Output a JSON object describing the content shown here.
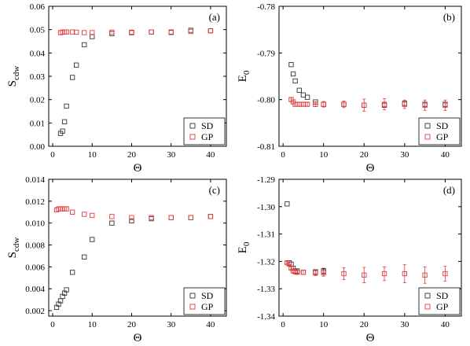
{
  "colors": {
    "SD": "#333333",
    "GP": "#e23b3b",
    "axis": "#000000"
  },
  "chart_data": [
    {
      "type": "scatter",
      "panel_label": "(a)",
      "xlabel": "Θ",
      "ylabel_main": "S",
      "ylabel_sub": "cdw",
      "xlim": [
        -1,
        44
      ],
      "ylim": [
        0.0,
        0.06
      ],
      "xticks": [
        0,
        10,
        20,
        30,
        40
      ],
      "yticks": [
        0.0,
        0.01,
        0.02,
        0.03,
        0.04,
        0.05,
        0.06
      ],
      "ytick_labels": [
        "0.00",
        "0.01",
        "0.02",
        "0.03",
        "0.04",
        "0.05",
        "0.06"
      ],
      "legend_position": "bottom-right",
      "series": [
        {
          "name": "SD",
          "color": "#333333",
          "x": [
            2,
            2.5,
            3,
            3.5,
            5,
            6,
            8,
            10,
            15,
            20,
            25,
            30,
            35,
            40
          ],
          "y": [
            0.0055,
            0.0065,
            0.0105,
            0.0172,
            0.0295,
            0.0348,
            0.0435,
            0.047,
            0.0483,
            0.0487,
            0.049,
            0.0488,
            0.0497,
            0.0495
          ],
          "err": []
        },
        {
          "name": "GP",
          "color": "#e23b3b",
          "x": [
            2,
            2.5,
            3,
            3.5,
            5,
            6,
            8,
            10,
            15,
            20,
            25,
            30,
            35,
            40
          ],
          "y": [
            0.0487,
            0.0489,
            0.049,
            0.049,
            0.049,
            0.0489,
            0.0487,
            0.0487,
            0.0489,
            0.0489,
            0.049,
            0.049,
            0.0492,
            0.0495
          ],
          "err": []
        }
      ]
    },
    {
      "type": "scatter",
      "panel_label": "(b)",
      "xlabel": "Θ",
      "ylabel_main": "E",
      "ylabel_sub": "0",
      "xlim": [
        -1,
        44
      ],
      "ylim": [
        -0.81,
        -0.78
      ],
      "xticks": [
        0,
        10,
        20,
        30,
        40
      ],
      "yticks": [
        -0.81,
        -0.8,
        -0.79,
        -0.78
      ],
      "ytick_labels": [
        "-0.81",
        "-0.80",
        "-0.79",
        "-0.78"
      ],
      "legend_position": "bottom-right",
      "series": [
        {
          "name": "SD",
          "color": "#333333",
          "x": [
            2,
            2.5,
            3,
            4,
            5,
            6,
            8,
            10,
            15,
            20,
            25,
            30,
            35,
            40
          ],
          "y": [
            -0.7925,
            -0.7945,
            -0.796,
            -0.798,
            -0.799,
            -0.7995,
            -0.8005,
            -0.801,
            -0.801,
            -0.8012,
            -0.8012,
            -0.8008,
            -0.801,
            -0.801
          ],
          "err": [
            0,
            0,
            0,
            0,
            0,
            0,
            0,
            0,
            0,
            0,
            0,
            0,
            0,
            0
          ]
        },
        {
          "name": "GP",
          "color": "#e23b3b",
          "x": [
            2,
            2.5,
            3,
            4,
            5,
            6,
            8,
            10,
            15,
            20,
            25,
            30,
            35,
            40
          ],
          "y": [
            -0.8,
            -0.8005,
            -0.801,
            -0.801,
            -0.801,
            -0.801,
            -0.801,
            -0.801,
            -0.801,
            -0.8012,
            -0.801,
            -0.801,
            -0.8012,
            -0.8012
          ],
          "err": [
            0.0004,
            0.0004,
            0.0004,
            0.0004,
            0.0004,
            0.0004,
            0.0005,
            0.0006,
            0.0007,
            0.0013,
            0.0012,
            0.0009,
            0.0011,
            0.0011
          ]
        }
      ]
    },
    {
      "type": "scatter",
      "panel_label": "(c)",
      "xlabel": "Θ",
      "ylabel_main": "S",
      "ylabel_sub": "cdw",
      "xlim": [
        -1,
        44
      ],
      "ylim": [
        0.0015,
        0.014
      ],
      "xticks": [
        0,
        10,
        20,
        30,
        40
      ],
      "yticks": [
        0.002,
        0.004,
        0.006,
        0.008,
        0.01,
        0.012,
        0.014
      ],
      "ytick_labels": [
        "0.002",
        "0.004",
        "0.006",
        "0.008",
        "0.010",
        "0.012",
        "0.014"
      ],
      "legend_position": "bottom-right",
      "series": [
        {
          "name": "SD",
          "color": "#333333",
          "x": [
            1,
            1.5,
            2,
            2.5,
            3,
            3.5,
            5,
            8,
            10,
            15,
            20,
            25,
            30,
            35,
            40
          ],
          "y": [
            0.0023,
            0.0026,
            0.0029,
            0.0033,
            0.0036,
            0.0039,
            0.0055,
            0.0069,
            0.0085,
            0.01,
            0.0102,
            0.0104,
            0.0105,
            0.0105,
            0.0106
          ],
          "err": []
        },
        {
          "name": "GP",
          "color": "#e23b3b",
          "x": [
            1,
            1.5,
            2,
            2.5,
            3,
            3.5,
            5,
            8,
            10,
            15,
            20,
            25,
            30,
            35,
            40
          ],
          "y": [
            0.0112,
            0.0113,
            0.0113,
            0.0113,
            0.0113,
            0.0113,
            0.011,
            0.0108,
            0.0107,
            0.0106,
            0.0105,
            0.0105,
            0.0105,
            0.0105,
            0.0106
          ],
          "err": []
        }
      ]
    },
    {
      "type": "scatter",
      "panel_label": "(d)",
      "xlabel": "Θ",
      "ylabel_main": "E",
      "ylabel_sub": "0",
      "xlim": [
        -1,
        44
      ],
      "ylim": [
        -1.34,
        -1.29
      ],
      "xticks": [
        0,
        10,
        20,
        30,
        40
      ],
      "yticks": [
        -1.34,
        -1.33,
        -1.32,
        -1.31,
        -1.3,
        -1.29
      ],
      "ytick_labels": [
        "-1.34",
        "-1.33",
        "-1.32",
        "-1.31",
        "-1.30",
        "-1.29"
      ],
      "legend_position": "bottom-right",
      "series": [
        {
          "name": "SD",
          "color": "#333333",
          "x": [
            1,
            1.5,
            2,
            2.5,
            3,
            3.5,
            5,
            8,
            10
          ],
          "y": [
            -1.299,
            -1.3205,
            -1.321,
            -1.3225,
            -1.3235,
            -1.3235,
            -1.324,
            -1.3238,
            -1.3235
          ],
          "err": [
            0,
            0,
            0,
            0,
            0,
            0,
            0,
            0,
            0.001
          ]
        },
        {
          "name": "GP",
          "color": "#e23b3b",
          "x": [
            1,
            1.5,
            2,
            2.5,
            3,
            3.5,
            5,
            8,
            10,
            15,
            20,
            25,
            30,
            35,
            40
          ],
          "y": [
            -1.3205,
            -1.321,
            -1.3225,
            -1.3235,
            -1.3238,
            -1.324,
            -1.324,
            -1.3242,
            -1.3242,
            -1.3245,
            -1.325,
            -1.3245,
            -1.3245,
            -1.325,
            -1.3245
          ],
          "err": [
            0.0004,
            0.0005,
            0.0005,
            0.0006,
            0.0006,
            0.0006,
            0.0008,
            0.001,
            0.0012,
            0.0022,
            0.0028,
            0.0025,
            0.0033,
            0.003,
            0.0027
          ]
        }
      ]
    }
  ]
}
